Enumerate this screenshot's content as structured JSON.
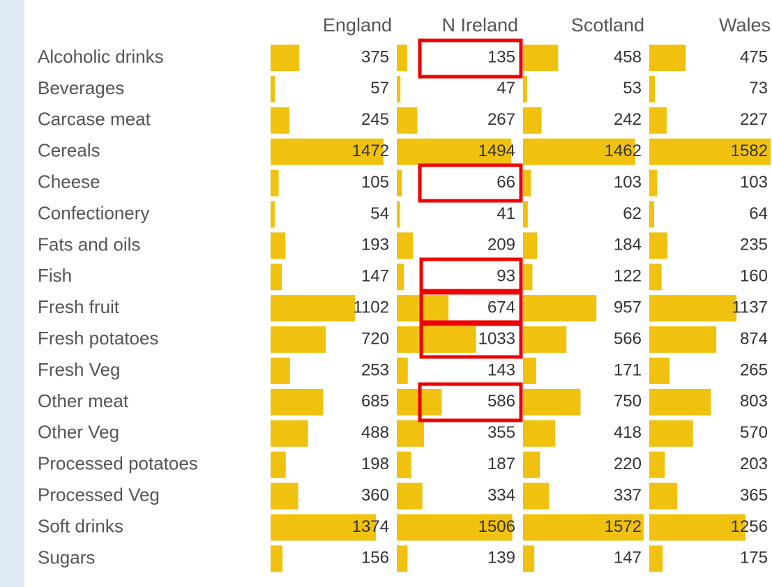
{
  "table": {
    "columns": [
      "England",
      "N Ireland",
      "Scotland",
      "Wales"
    ],
    "rows": [
      {
        "label": "Alcoholic drinks",
        "values": [
          375,
          135,
          458,
          475
        ]
      },
      {
        "label": "Beverages",
        "values": [
          57,
          47,
          53,
          73
        ]
      },
      {
        "label": "Carcase meat",
        "values": [
          245,
          267,
          242,
          227
        ]
      },
      {
        "label": "Cereals",
        "values": [
          1472,
          1494,
          1462,
          1582
        ]
      },
      {
        "label": "Cheese",
        "values": [
          105,
          66,
          103,
          103
        ]
      },
      {
        "label": "Confectionery",
        "values": [
          54,
          41,
          62,
          64
        ]
      },
      {
        "label": "Fats and oils",
        "values": [
          193,
          209,
          184,
          235
        ]
      },
      {
        "label": "Fish",
        "values": [
          147,
          93,
          122,
          160
        ]
      },
      {
        "label": "Fresh fruit",
        "values": [
          1102,
          674,
          957,
          1137
        ]
      },
      {
        "label": "Fresh potatoes",
        "values": [
          720,
          1033,
          566,
          874
        ]
      },
      {
        "label": "Fresh Veg",
        "values": [
          253,
          143,
          171,
          265
        ]
      },
      {
        "label": "Other meat",
        "values": [
          685,
          586,
          750,
          803
        ]
      },
      {
        "label": "Other Veg",
        "values": [
          488,
          355,
          418,
          570
        ]
      },
      {
        "label": "Processed potatoes",
        "values": [
          198,
          187,
          220,
          203
        ]
      },
      {
        "label": "Processed Veg",
        "values": [
          360,
          334,
          337,
          365
        ]
      },
      {
        "label": "Soft drinks",
        "values": [
          1374,
          1506,
          1572,
          1256
        ]
      },
      {
        "label": "Sugars",
        "values": [
          156,
          139,
          147,
          175
        ]
      }
    ],
    "bar_color": "#f0c20f"
  }
}
